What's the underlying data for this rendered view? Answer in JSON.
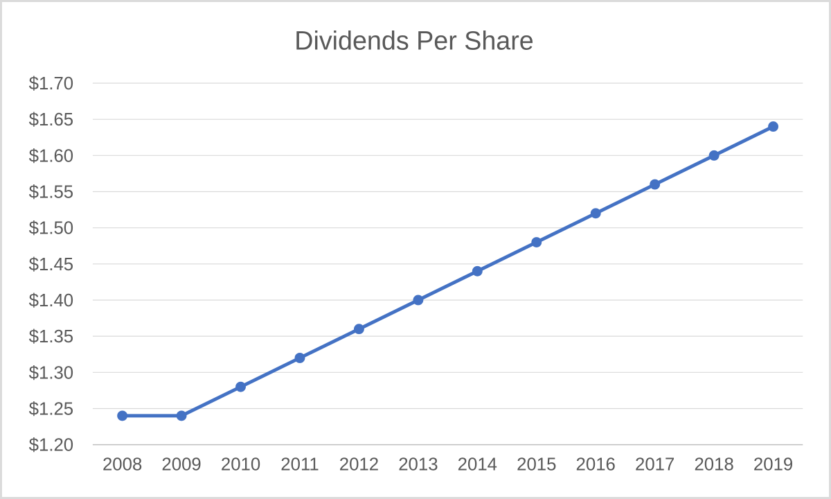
{
  "chart_data": {
    "type": "line",
    "title": "Dividends Per Share",
    "categories": [
      "2008",
      "2009",
      "2010",
      "2011",
      "2012",
      "2013",
      "2014",
      "2015",
      "2016",
      "2017",
      "2018",
      "2019"
    ],
    "series": [
      {
        "name": "Dividends Per Share",
        "values": [
          1.24,
          1.24,
          1.28,
          1.32,
          1.36,
          1.4,
          1.44,
          1.48,
          1.52,
          1.56,
          1.6,
          1.64
        ]
      }
    ],
    "ylim": [
      1.2,
      1.7
    ],
    "y_ticks": [
      {
        "value": 1.2,
        "label": "$1.20"
      },
      {
        "value": 1.25,
        "label": "$1.25"
      },
      {
        "value": 1.3,
        "label": "$1.30"
      },
      {
        "value": 1.35,
        "label": "$1.35"
      },
      {
        "value": 1.4,
        "label": "$1.40"
      },
      {
        "value": 1.45,
        "label": "$1.45"
      },
      {
        "value": 1.5,
        "label": "$1.50"
      },
      {
        "value": 1.55,
        "label": "$1.55"
      },
      {
        "value": 1.6,
        "label": "$1.60"
      },
      {
        "value": 1.65,
        "label": "$1.65"
      },
      {
        "value": 1.7,
        "label": "$1.70"
      }
    ],
    "grid": true,
    "legend_position": "none",
    "colors": {
      "line": "#4472C4",
      "marker": "#4472C4",
      "gridline": "#D9D9D9",
      "axis_line": "#BFBFBF",
      "tick_label": "#595959",
      "title": "#595959",
      "background": "#FFFFFF",
      "border": "#DBDBDB"
    }
  }
}
